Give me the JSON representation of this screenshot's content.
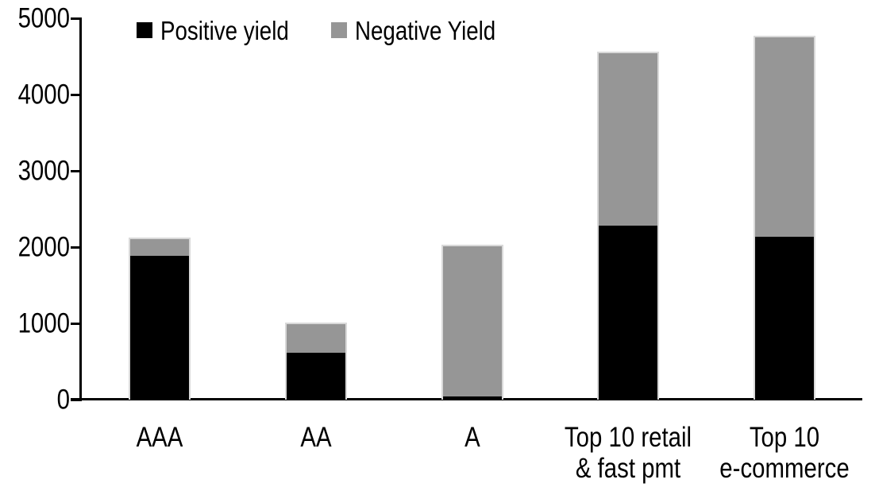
{
  "chart_data": {
    "type": "bar",
    "stacked": true,
    "title": "",
    "xlabel": "",
    "ylabel": "",
    "categories": [
      "AAA",
      "AA",
      "A",
      "Top 10 retail & fast pmt",
      "Top 10 e-commerce"
    ],
    "category_label_lines": [
      [
        "AAA"
      ],
      [
        "AA"
      ],
      [
        "A"
      ],
      [
        "Top 10 retail",
        "& fast pmt"
      ],
      [
        "Top 10",
        "e-commerce"
      ]
    ],
    "series": [
      {
        "name": "Positive yield",
        "color": "#000000",
        "values": [
          1900,
          630,
          40,
          2290,
          2150
        ]
      },
      {
        "name": "Negative Yield",
        "color": "#969696",
        "values": [
          230,
          380,
          1990,
          2270,
          2620
        ]
      }
    ],
    "ylim": [
      0,
      5000
    ],
    "yticks": [
      0,
      1000,
      2000,
      3000,
      4000,
      5000
    ],
    "grid": false,
    "legend_position": "top-left",
    "axis_color": "#000000",
    "bar_outline_color": "#d9d9d9"
  }
}
